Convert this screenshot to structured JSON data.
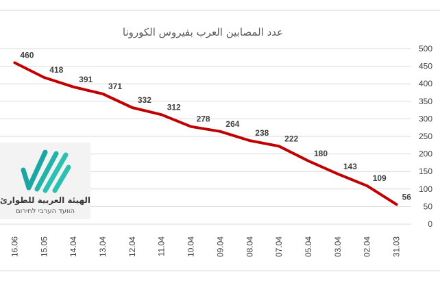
{
  "chart_data": {
    "type": "line",
    "title": "عدد المصابين العرب بفيروس الكورونا",
    "x": [
      "16.06",
      "15.05",
      "14.04",
      "13.04",
      "12.04",
      "11.04",
      "10.04",
      "09.04",
      "08.04",
      "07.04",
      "05.04",
      "03.04",
      "02.04",
      "31.03"
    ],
    "series": [
      {
        "values": [
          460,
          418,
          391,
          371,
          332,
          312,
          278,
          264,
          238,
          222,
          180,
          143,
          109,
          56
        ]
      }
    ],
    "ylim": [
      0,
      500
    ],
    "yticks": [
      0,
      50,
      100,
      150,
      200,
      250,
      300,
      350,
      400,
      450,
      500
    ],
    "grid": true,
    "y_axis_side": "right",
    "line_color": "#c00000"
  },
  "logo": {
    "name_ar": "الهيئة العربية للطوارئ",
    "name_he": "הוועד הערבי לחירום",
    "colors": [
      "#1aa7a1",
      "#2cc0b0"
    ]
  }
}
